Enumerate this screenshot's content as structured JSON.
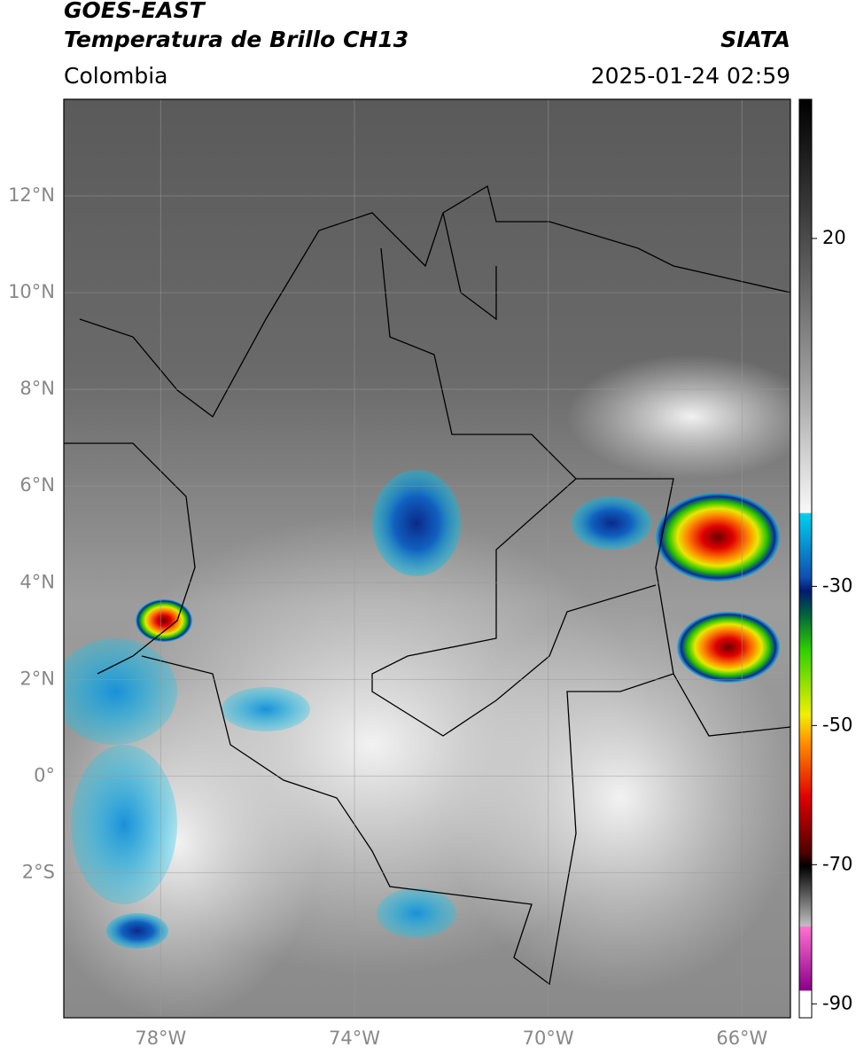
{
  "header": {
    "title": "GOES-EAST",
    "subtitle": "Temperatura de Brillo CH13",
    "source": "SIATA",
    "region": "Colombia",
    "timestamp": "2025-01-24 02:59"
  },
  "chart_data": {
    "type": "map",
    "xlim": [
      -80,
      -65
    ],
    "ylim": [
      -5,
      14
    ],
    "xticks": [
      {
        "value": -78,
        "label": "78°W"
      },
      {
        "value": -74,
        "label": "74°W"
      },
      {
        "value": -70,
        "label": "70°W"
      },
      {
        "value": -66,
        "label": "66°W"
      }
    ],
    "yticks": [
      {
        "value": 12,
        "label": "12°N"
      },
      {
        "value": 10,
        "label": "10°N"
      },
      {
        "value": 8,
        "label": "8°N"
      },
      {
        "value": 6,
        "label": "6°N"
      },
      {
        "value": 4,
        "label": "4°N"
      },
      {
        "value": 2,
        "label": "2°N"
      },
      {
        "value": 0,
        "label": "0°"
      },
      {
        "value": -2,
        "label": "2°S"
      }
    ],
    "grid": true,
    "colorbar": {
      "lim": [
        -92,
        40
      ],
      "ticks": [
        20,
        -30,
        -50,
        -70,
        -90
      ]
    }
  }
}
